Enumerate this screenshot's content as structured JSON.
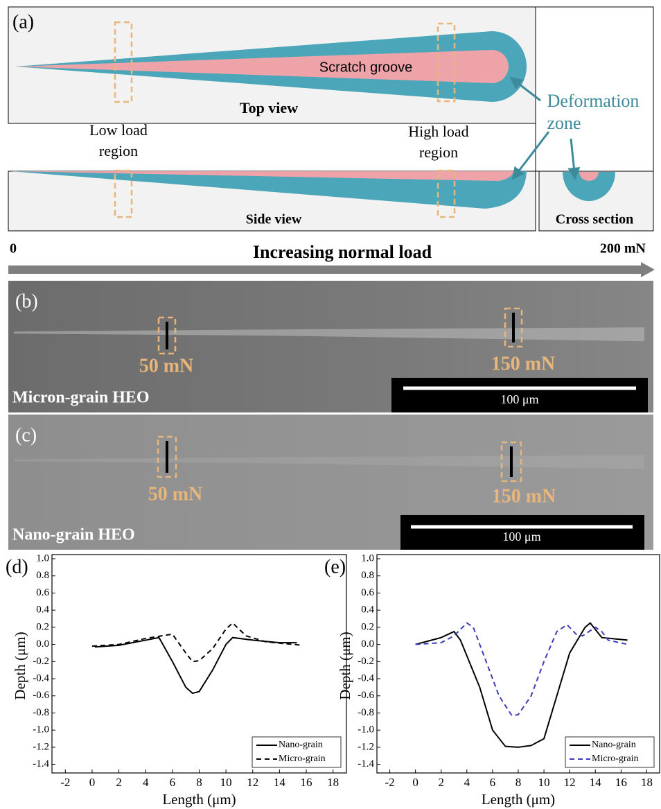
{
  "panel_a": {
    "label": "(a)",
    "groove_label": "Scratch groove",
    "top_view": "Top view",
    "low_load": [
      "Low load",
      "region"
    ],
    "high_load": [
      "High load",
      "region"
    ],
    "deformation": [
      "Deformation",
      "zone"
    ],
    "side_view": "Side view",
    "cross_section": "Cross section"
  },
  "load_axis": {
    "start": "0",
    "title": "Increasing normal load",
    "end": "200 mN"
  },
  "micrographs": [
    {
      "label": "(b)",
      "low": "50 mN",
      "high": "150 mN",
      "name": "Micron-grain HEO",
      "scale_bar": "100 μm"
    },
    {
      "label": "(c)",
      "low": "50 mN",
      "high": "150 mN",
      "name": "Nano-grain HEO",
      "scale_bar": "100 μm"
    }
  ],
  "chart_data": [
    {
      "type": "line",
      "panel_label": "(d)",
      "xlabel": "Length (μm)",
      "ylabel": "Depth (μm)",
      "xlim": [
        -3,
        19
      ],
      "ylim": [
        -1.5,
        1.0
      ],
      "xticks": [
        -2,
        0,
        2,
        4,
        6,
        8,
        10,
        12,
        14,
        16,
        18
      ],
      "yticks": [
        {
          "value": 1.0,
          "label": "1.0"
        },
        0.8,
        0.6,
        0.4,
        0.2,
        {
          "value": 0,
          "label": "0.0"
        },
        -0.2,
        -0.4,
        -0.6,
        -0.8,
        {
          "value": -1.0,
          "label": "-1.0"
        },
        -1.2,
        -1.4
      ],
      "legend": "lower right",
      "series": [
        {
          "name": "Nano-grain",
          "color": "#000000",
          "line_style": "solid",
          "x": [
            0.2,
            2,
            4,
            5,
            6,
            7,
            7.5,
            8,
            9,
            10,
            10.5,
            12,
            14,
            15.3
          ],
          "values": [
            -0.03,
            -0.01,
            0.05,
            0.08,
            -0.2,
            -0.5,
            -0.57,
            -0.55,
            -0.3,
            0.0,
            0.08,
            0.05,
            0.02,
            0.02
          ]
        },
        {
          "name": "Micro-grain",
          "color": "#000000",
          "line_style": "dashed",
          "x": [
            0,
            2,
            4,
            6,
            7,
            7.5,
            8,
            9,
            10,
            10.5,
            11.5,
            13,
            15.7
          ],
          "values": [
            -0.02,
            0,
            0.07,
            0.12,
            -0.1,
            -0.2,
            -0.19,
            -0.05,
            0.18,
            0.25,
            0.1,
            0.03,
            -0.01
          ]
        }
      ]
    },
    {
      "type": "line",
      "panel_label": "(e)",
      "xlabel": "Length (μm)",
      "ylabel": "Depth (μm)",
      "xlim": [
        -3,
        19
      ],
      "ylim": [
        -1.5,
        1.0
      ],
      "xticks": [
        -2,
        0,
        2,
        4,
        6,
        8,
        10,
        12,
        14,
        16,
        18
      ],
      "yticks": [
        {
          "value": 1.0,
          "label": "1.0"
        },
        0.8,
        0.6,
        0.4,
        0.2,
        {
          "value": 0,
          "label": "0.0"
        },
        -0.2,
        -0.4,
        -0.6,
        -0.8,
        {
          "value": -1.0,
          "label": "-1.0"
        },
        -1.2,
        -1.4
      ],
      "legend": "lower right",
      "series": [
        {
          "name": "Nano-grain",
          "color": "#000000",
          "line_style": "solid",
          "x": [
            0,
            2,
            3,
            3.5,
            5,
            6,
            7,
            8,
            9,
            10,
            11,
            12,
            13.2,
            13.6,
            14.5,
            16.5
          ],
          "values": [
            0.0,
            0.08,
            0.15,
            0.05,
            -0.5,
            -1.0,
            -1.19,
            -1.2,
            -1.18,
            -1.1,
            -0.6,
            -0.1,
            0.2,
            0.25,
            0.08,
            0.05
          ]
        },
        {
          "name": "Micro-grain",
          "color": "#3a3ab8",
          "line_style": "dashed",
          "x": [
            0,
            2,
            3,
            4,
            4.5,
            5.5,
            6.5,
            7.5,
            8,
            9,
            10,
            11,
            11.8,
            12.5,
            13,
            14,
            14.5,
            15,
            16.5
          ],
          "values": [
            0.0,
            0.02,
            0.1,
            0.25,
            0.2,
            -0.2,
            -0.6,
            -0.83,
            -0.82,
            -0.6,
            -0.2,
            0.15,
            0.23,
            0.12,
            0.1,
            0.2,
            0.15,
            0.05,
            0.0
          ]
        }
      ]
    }
  ]
}
